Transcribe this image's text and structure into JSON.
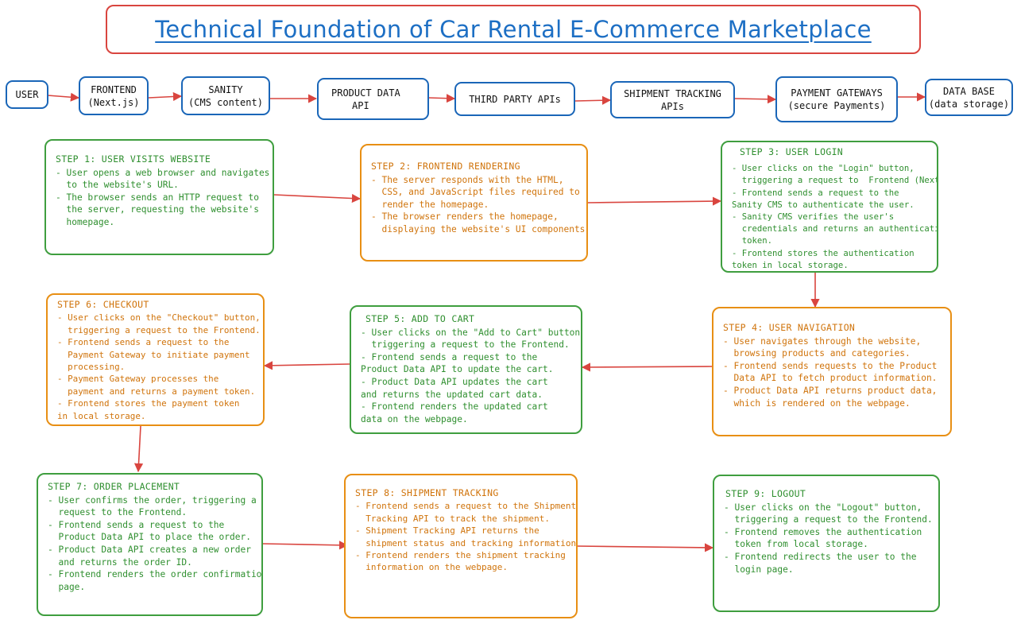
{
  "title": "Technical Foundation of Car Rental E-Commerce Marketplace",
  "colors": {
    "title": "#1d6fc4",
    "title_border": "#d9453f",
    "node_border": "#1a66b8",
    "arrow": "#d9453f",
    "green": "#2f8f2f",
    "orange": "#d0740c"
  },
  "architecture": [
    {
      "lines": [
        "USER"
      ]
    },
    {
      "lines": [
        "FRONTEND",
        "(Next.js)"
      ]
    },
    {
      "lines": [
        "SANITY",
        "(CMS content)"
      ]
    },
    {
      "lines": [
        "PRODUCT DATA",
        "API"
      ]
    },
    {
      "lines": [
        "THIRD PARTY APIs"
      ]
    },
    {
      "lines": [
        "SHIPMENT TRACKING",
        "APIs"
      ]
    },
    {
      "lines": [
        "PAYMENT GATEWAYS",
        "(secure Payments)"
      ]
    },
    {
      "lines": [
        "DATA BASE",
        "(data storage)"
      ]
    }
  ],
  "steps": [
    {
      "title": "STEP 1: USER VISITS WEBSITE",
      "lines": [
        "- User opens a web browser and navigates",
        "  to the website's URL.",
        "- The browser sends an HTTP request to",
        "  the server, requesting the website's",
        "  homepage."
      ]
    },
    {
      "title": "STEP 2: FRONTEND RENDERING",
      "lines": [
        "- The server responds with the HTML,",
        "  CSS, and JavaScript files required to",
        "  render the homepage.",
        "- The browser renders the homepage,",
        "  displaying the website's UI components."
      ]
    },
    {
      "title": "STEP 3: USER LOGIN",
      "lines": [
        "- User clicks on the \"Login\" button,",
        "  triggering a request to  Frontend (Next.js).",
        "- Frontend sends a request to the",
        "Sanity CMS to authenticate the user.",
        "- Sanity CMS verifies the user's",
        "  credentials and returns an authentication",
        "  token.",
        "- Frontend stores the authentication",
        "token in local storage."
      ]
    },
    {
      "title": "STEP 4: USER NAVIGATION",
      "lines": [
        "- User navigates through the website,",
        "  browsing products and categories.",
        "- Frontend sends requests to the Product",
        "  Data API to fetch product information.",
        "- Product Data API returns product data,",
        "  which is rendered on the webpage."
      ]
    },
    {
      "title": "STEP 5: ADD TO CART",
      "lines": [
        "- User clicks on the \"Add to Cart\" button,",
        "  triggering a request to the Frontend.",
        "- Frontend sends a request to the",
        "Product Data API to update the cart.",
        "- Product Data API updates the cart",
        "and returns the updated cart data.",
        "- Frontend renders the updated cart",
        "data on the webpage."
      ]
    },
    {
      "title": "STEP 6: CHECKOUT",
      "lines": [
        "- User clicks on the \"Checkout\" button,",
        "  triggering a request to the Frontend.",
        "- Frontend sends a request to the",
        "  Payment Gateway to initiate payment",
        "  processing.",
        "- Payment Gateway processes the",
        "  payment and returns a payment token.",
        "- Frontend stores the payment token",
        "in local storage."
      ]
    },
    {
      "title": "STEP 7: ORDER PLACEMENT",
      "lines": [
        "- User confirms the order, triggering a",
        "  request to the Frontend.",
        "- Frontend sends a request to the",
        "  Product Data API to place the order.",
        "- Product Data API creates a new order",
        "  and returns the order ID.",
        "- Frontend renders the order confirmation",
        "  page."
      ]
    },
    {
      "title": "STEP 8: SHIPMENT TRACKING",
      "lines": [
        "- Frontend sends a request to the Shipment",
        "  Tracking API to track the shipment.",
        "- Shipment Tracking API returns the",
        "  shipment status and tracking information.",
        "- Frontend renders the shipment tracking",
        "  information on the webpage."
      ]
    },
    {
      "title": "STEP 9: LOGOUT",
      "lines": [
        "- User clicks on the \"Logout\" button,",
        "  triggering a request to the Frontend.",
        "- Frontend removes the authentication",
        "  token from local storage.",
        "- Frontend redirects the user to the",
        "  login page."
      ]
    }
  ]
}
